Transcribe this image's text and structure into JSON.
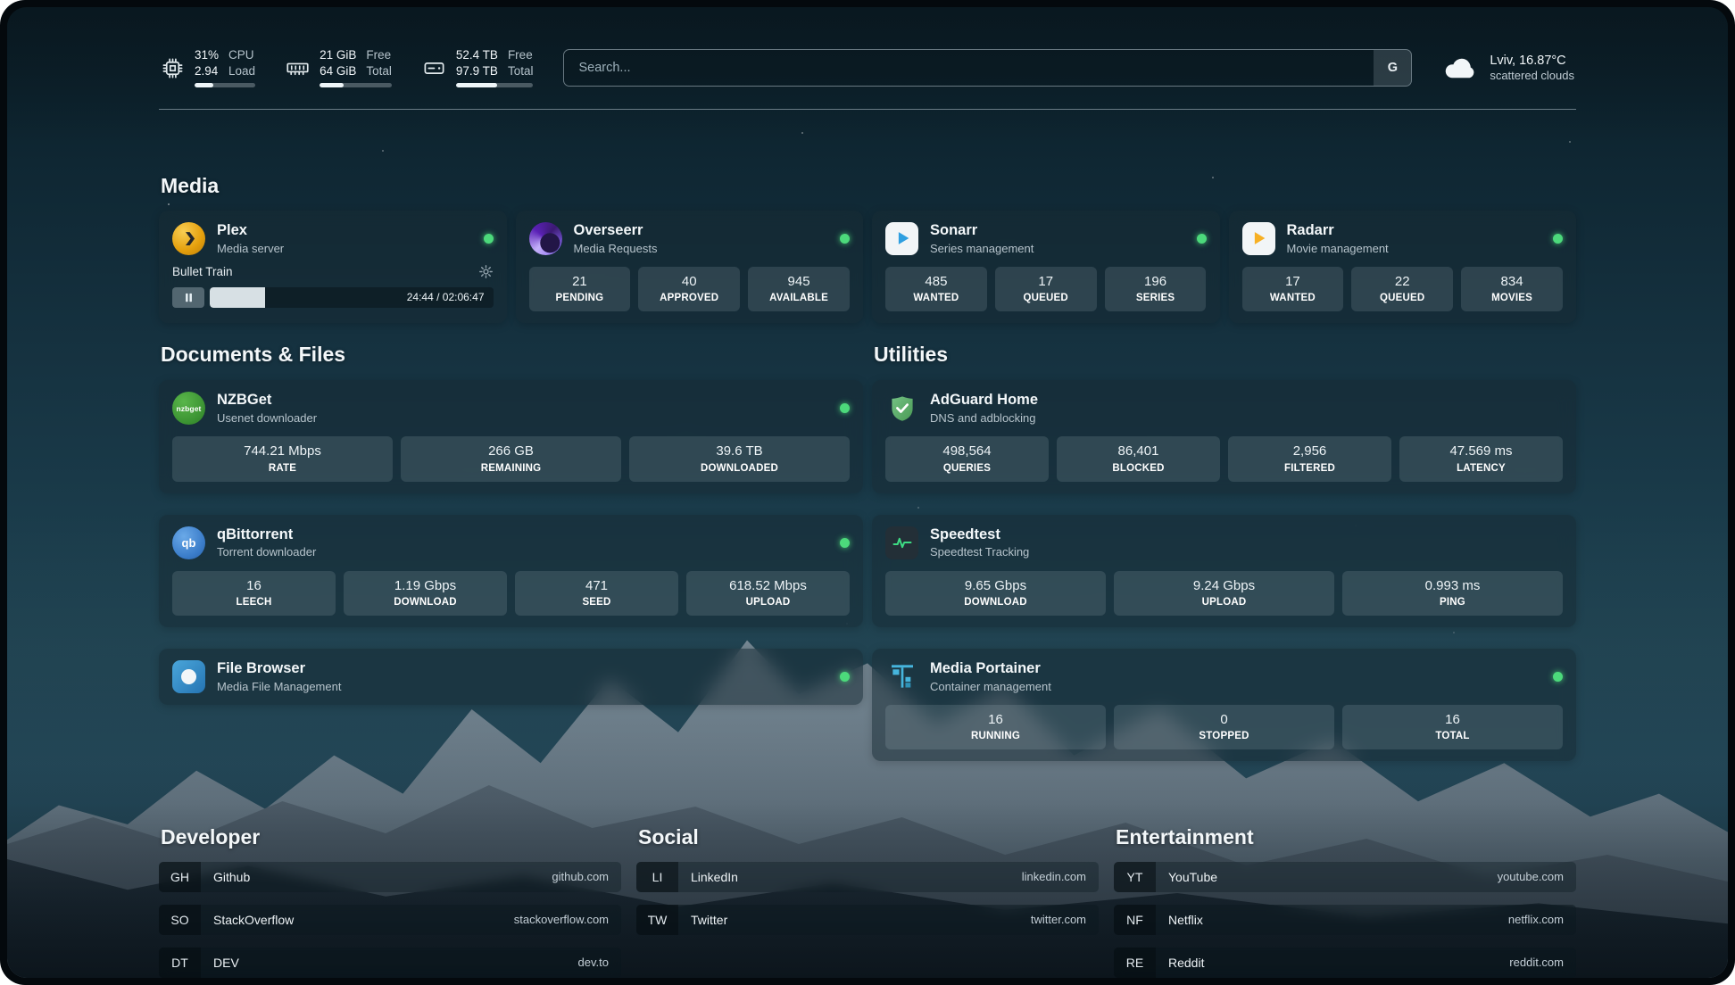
{
  "topbar": {
    "cpu": {
      "value1": "31%",
      "label1": "CPU",
      "value2": "2.94",
      "label2": "Load"
    },
    "ram": {
      "value1": "21 GiB",
      "label1": "Free",
      "value2": "64 GiB",
      "label2": "Total"
    },
    "disk": {
      "value1": "52.4 TB",
      "label1": "Free",
      "value2": "97.9 TB",
      "label2": "Total"
    },
    "search": {
      "placeholder": "Search...",
      "engine": "G"
    },
    "weather": {
      "summary": "Lviv, 16.87°C",
      "condition": "scattered clouds"
    }
  },
  "sections": {
    "media": "Media",
    "documents": "Documents & Files",
    "utilities": "Utilities",
    "developer": "Developer",
    "social": "Social",
    "entertainment": "Entertainment"
  },
  "apps": {
    "plex": {
      "name": "Plex",
      "subtitle": "Media server",
      "now_playing": "Bullet Train",
      "progress_time": "24:44 / 02:06:47",
      "progress_percent": "19.5%"
    },
    "overseerr": {
      "name": "Overseerr",
      "subtitle": "Media Requests",
      "stats": [
        {
          "value": "21",
          "label": "PENDING"
        },
        {
          "value": "40",
          "label": "APPROVED"
        },
        {
          "value": "945",
          "label": "AVAILABLE"
        }
      ]
    },
    "sonarr": {
      "name": "Sonarr",
      "subtitle": "Series management",
      "stats": [
        {
          "value": "485",
          "label": "WANTED"
        },
        {
          "value": "17",
          "label": "QUEUED"
        },
        {
          "value": "196",
          "label": "SERIES"
        }
      ]
    },
    "radarr": {
      "name": "Radarr",
      "subtitle": "Movie management",
      "stats": [
        {
          "value": "17",
          "label": "WANTED"
        },
        {
          "value": "22",
          "label": "QUEUED"
        },
        {
          "value": "834",
          "label": "MOVIES"
        }
      ]
    },
    "nzbget": {
      "name": "NZBGet",
      "subtitle": "Usenet downloader",
      "icon_text": "nzbget",
      "stats": [
        {
          "value": "744.21 Mbps",
          "label": "RATE"
        },
        {
          "value": "266 GB",
          "label": "REMAINING"
        },
        {
          "value": "39.6 TB",
          "label": "DOWNLOADED"
        }
      ]
    },
    "qbittorrent": {
      "name": "qBittorrent",
      "subtitle": "Torrent downloader",
      "icon_text": "qb",
      "stats": [
        {
          "value": "16",
          "label": "LEECH"
        },
        {
          "value": "1.19 Gbps",
          "label": "DOWNLOAD"
        },
        {
          "value": "471",
          "label": "SEED"
        },
        {
          "value": "618.52 Mbps",
          "label": "UPLOAD"
        }
      ]
    },
    "filebrowser": {
      "name": "File Browser",
      "subtitle": "Media File Management"
    },
    "adguard": {
      "name": "AdGuard Home",
      "subtitle": "DNS and adblocking",
      "stats": [
        {
          "value": "498,564",
          "label": "QUERIES"
        },
        {
          "value": "86,401",
          "label": "BLOCKED"
        },
        {
          "value": "2,956",
          "label": "FILTERED"
        },
        {
          "value": "47.569 ms",
          "label": "LATENCY"
        }
      ]
    },
    "speedtest": {
      "name": "Speedtest",
      "subtitle": "Speedtest Tracking",
      "stats": [
        {
          "value": "9.65 Gbps",
          "label": "DOWNLOAD"
        },
        {
          "value": "9.24 Gbps",
          "label": "UPLOAD"
        },
        {
          "value": "0.993 ms",
          "label": "PING"
        }
      ]
    },
    "portainer": {
      "name": "Media Portainer",
      "subtitle": "Container management",
      "stats": [
        {
          "value": "16",
          "label": "RUNNING"
        },
        {
          "value": "0",
          "label": "STOPPED"
        },
        {
          "value": "16",
          "label": "TOTAL"
        }
      ]
    }
  },
  "bookmarks": {
    "developer": [
      {
        "abbr": "GH",
        "name": "Github",
        "url": "github.com"
      },
      {
        "abbr": "SO",
        "name": "StackOverflow",
        "url": "stackoverflow.com"
      },
      {
        "abbr": "DT",
        "name": "DEV",
        "url": "dev.to"
      }
    ],
    "social": [
      {
        "abbr": "LI",
        "name": "LinkedIn",
        "url": "linkedin.com"
      },
      {
        "abbr": "TW",
        "name": "Twitter",
        "url": "twitter.com"
      }
    ],
    "entertainment": [
      {
        "abbr": "YT",
        "name": "YouTube",
        "url": "youtube.com"
      },
      {
        "abbr": "NF",
        "name": "Netflix",
        "url": "netflix.com"
      },
      {
        "abbr": "RE",
        "name": "Reddit",
        "url": "reddit.com"
      }
    ]
  },
  "colors": {
    "status_online": "#4cd97b"
  }
}
